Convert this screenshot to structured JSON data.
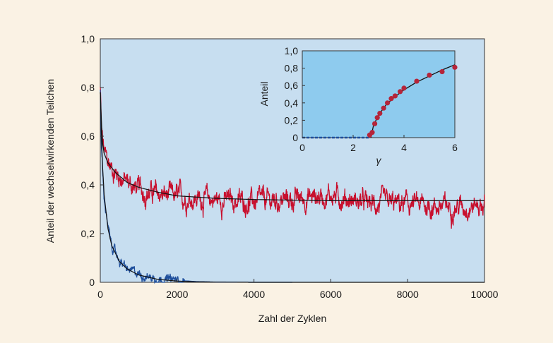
{
  "chart_data": [
    {
      "type": "line",
      "xlabel": "Zahl der Zyklen",
      "ylabel": "Anteil der wechselwirkenden Teilchen",
      "xlim": [
        0,
        10000
      ],
      "ylim": [
        0,
        1.0
      ],
      "xticks": [
        "0",
        "2000",
        "4000",
        "6000",
        "8000",
        "10000"
      ],
      "yticks": [
        "0",
        "0,2",
        "0,4",
        "0,6",
        "0,8",
        "1,0"
      ],
      "grid": false,
      "colors": {
        "red": "#c8102e",
        "blue": "#1f4f9c",
        "fit": "#111111",
        "plot_bg": "#c7def0"
      },
      "series": [
        {
          "color": "red",
          "values_x": [
            0,
            30,
            100,
            200,
            400,
            700,
            1000,
            1500,
            2000,
            3000,
            4000,
            5000,
            6000,
            7000,
            8000,
            9000,
            10000
          ],
          "values_y": [
            0.8,
            0.62,
            0.53,
            0.49,
            0.45,
            0.41,
            0.38,
            0.36,
            0.35,
            0.34,
            0.33,
            0.34,
            0.36,
            0.32,
            0.32,
            0.31,
            0.32
          ]
        },
        {
          "color": "blue",
          "values_x": [
            0,
            30,
            100,
            200,
            300,
            500,
            700,
            900,
            1200,
            1500,
            2000,
            2500,
            3000,
            4000,
            5000
          ],
          "values_y": [
            0.8,
            0.55,
            0.35,
            0.22,
            0.15,
            0.09,
            0.05,
            0.04,
            0.025,
            0.015,
            0.008,
            0.003,
            0.001,
            0.0,
            0.0
          ]
        },
        {
          "color": "fit",
          "values_x": [
            0,
            50,
            100,
            200,
            400,
            700,
            1000,
            1500,
            2000,
            3000,
            4000,
            6000,
            8000,
            10000
          ],
          "values_y": [
            0.78,
            0.58,
            0.53,
            0.49,
            0.45,
            0.41,
            0.39,
            0.37,
            0.355,
            0.345,
            0.34,
            0.335,
            0.335,
            0.335
          ]
        },
        {
          "color": "fit",
          "values_x": [
            0,
            50,
            100,
            200,
            300,
            500,
            700,
            1000,
            1500,
            2000,
            2500,
            3000,
            4000
          ],
          "values_y": [
            0.78,
            0.5,
            0.36,
            0.22,
            0.15,
            0.085,
            0.055,
            0.03,
            0.012,
            0.005,
            0.002,
            0.001,
            0.0
          ]
        }
      ]
    },
    {
      "type": "scatter",
      "xlabel": "γ",
      "ylabel": "Anteil",
      "xlim": [
        0,
        6
      ],
      "ylim": [
        0,
        1.0
      ],
      "xticks": [
        "0",
        "2",
        "4",
        "6"
      ],
      "yticks": [
        "0",
        "0,2",
        "0,4",
        "0,6",
        "0,8",
        "1,0"
      ],
      "colors": {
        "points": "#b5253a",
        "fit": "#111111",
        "baseline": "#1f4f9c",
        "plot_bg": "#8ecbee"
      },
      "points_x": [
        2.65,
        2.75,
        2.85,
        2.95,
        3.05,
        3.2,
        3.35,
        3.5,
        3.65,
        3.85,
        4.0,
        4.5,
        5.0,
        5.5,
        6.0
      ],
      "points_y": [
        0.03,
        0.06,
        0.16,
        0.23,
        0.28,
        0.34,
        0.4,
        0.45,
        0.48,
        0.53,
        0.57,
        0.65,
        0.72,
        0.76,
        0.81
      ],
      "fit_x": [
        2.7,
        2.8,
        3.0,
        3.3,
        3.6,
        4.0,
        4.5,
        5.0,
        5.5,
        6.0
      ],
      "fit_y": [
        0.0,
        0.14,
        0.26,
        0.38,
        0.46,
        0.55,
        0.64,
        0.71,
        0.78,
        0.84
      ],
      "baseline_x": [
        0,
        2.65
      ],
      "baseline_y": [
        0.0,
        0.0
      ]
    }
  ]
}
